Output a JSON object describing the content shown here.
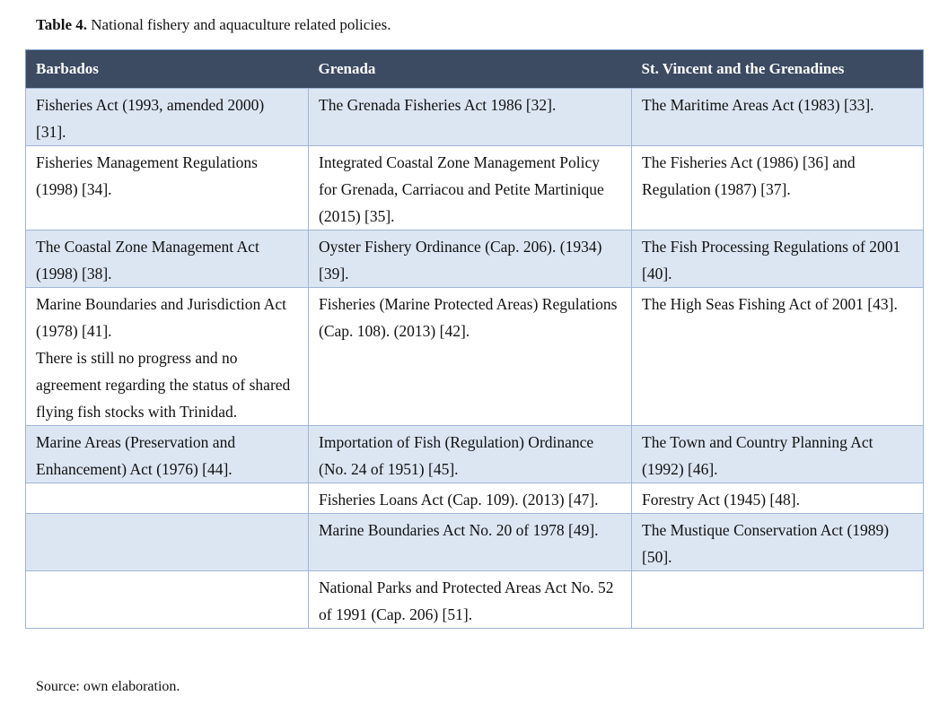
{
  "caption": {
    "label": "Table 4.",
    "text": "National fishery and aquaculture related policies."
  },
  "table": {
    "headers": [
      "Barbados",
      "Grenada",
      "St. Vincent and the Grenadines"
    ],
    "rows": [
      [
        [
          "Fisheries Act (1993, amended 2000) [31]."
        ],
        [
          "The Grenada Fisheries Act 1986 [32]."
        ],
        [
          "The Maritime Areas Act (1983) [33]."
        ]
      ],
      [
        [
          "Fisheries Management Regulations (1998) [34]."
        ],
        [
          "Integrated Coastal Zone Management Policy for Grenada, Carriacou and Petite Martinique (2015) [35]."
        ],
        [
          "The Fisheries Act (1986) [36] and Regulation (1987) [37]."
        ]
      ],
      [
        [
          "The Coastal Zone Management Act (1998) [38]."
        ],
        [
          "Oyster Fishery Ordinance (Cap. 206). (1934) [39]."
        ],
        [
          "The Fish Processing Regulations of 2001 [40]."
        ]
      ],
      [
        [
          "Marine Boundaries and Jurisdiction Act (1978) [41].",
          "There is still no progress and no agreement regarding the status of shared flying fish stocks with Trinidad."
        ],
        [
          "Fisheries (Marine Protected Areas) Regulations (Cap. 108). (2013) [42]."
        ],
        [
          "The High Seas Fishing Act of 2001 [43]."
        ]
      ],
      [
        [
          "Marine Areas (Preservation and Enhancement) Act (1976) [44]."
        ],
        [
          "Importation of Fish (Regulation) Ordinance (No. 24 of 1951) [45]."
        ],
        [
          "The Town and Country Planning Act (1992) [46]."
        ]
      ],
      [
        null,
        [
          "Fisheries Loans Act (Cap. 109). (2013) [47]."
        ],
        [
          "Forestry Act (1945) [48]."
        ]
      ],
      [
        null,
        [
          "Marine Boundaries Act No. 20 of 1978 [49]."
        ],
        [
          "The Mustique Conservation Act (1989) [50]."
        ]
      ],
      [
        null,
        [
          "National Parks and Protected Areas Act No. 52 of 1991 (Cap. 206) [51]."
        ],
        null
      ]
    ]
  },
  "source": "Source: own elaboration."
}
